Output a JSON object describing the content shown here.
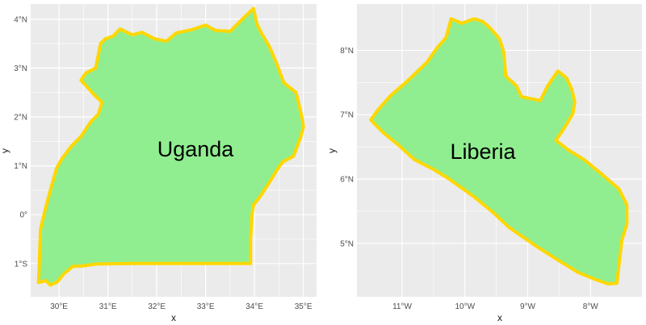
{
  "colors": {
    "panel_background": "#ebebeb",
    "grid": "#ffffff",
    "country_fill": "#90ee90",
    "country_border": "#ffd700"
  },
  "chart_data": [
    {
      "type": "map",
      "country": "Uganda",
      "label": "Uganda",
      "xlabel": "x",
      "ylabel": "y",
      "xlim": [
        29.42,
        35.27
      ],
      "ylim": [
        -1.68,
        4.31
      ],
      "x_ticks": [
        30,
        31,
        32,
        33,
        34,
        35
      ],
      "x_tick_labels": [
        "30°E",
        "31°E",
        "32°E",
        "33°E",
        "34°E",
        "35°E"
      ],
      "y_ticks": [
        -1,
        0,
        1,
        2,
        3,
        4
      ],
      "y_tick_labels": [
        "1°S",
        "0°",
        "1°N",
        "2°N",
        "3°N",
        "4°N"
      ],
      "grid": true,
      "boundary": [
        [
          29.58,
          -1.39
        ],
        [
          29.73,
          -1.35
        ],
        [
          29.82,
          -1.44
        ],
        [
          29.96,
          -1.38
        ],
        [
          30.1,
          -1.21
        ],
        [
          30.28,
          -1.06
        ],
        [
          30.48,
          -1.05
        ],
        [
          30.77,
          -1.01
        ],
        [
          31.5,
          -1.0
        ],
        [
          32.5,
          -1.0
        ],
        [
          33.3,
          -1.0
        ],
        [
          33.92,
          -1.0
        ],
        [
          33.92,
          -0.5
        ],
        [
          33.95,
          0.0
        ],
        [
          33.98,
          0.2
        ],
        [
          34.1,
          0.35
        ],
        [
          34.2,
          0.5
        ],
        [
          34.33,
          0.7
        ],
        [
          34.45,
          0.9
        ],
        [
          34.58,
          1.08
        ],
        [
          34.8,
          1.2
        ],
        [
          34.95,
          1.6
        ],
        [
          35.0,
          1.8
        ],
        [
          34.97,
          2.0
        ],
        [
          34.85,
          2.5
        ],
        [
          34.6,
          2.7
        ],
        [
          34.45,
          3.1
        ],
        [
          34.3,
          3.45
        ],
        [
          34.15,
          3.7
        ],
        [
          34.05,
          3.9
        ],
        [
          33.98,
          4.22
        ],
        [
          33.7,
          3.95
        ],
        [
          33.5,
          3.75
        ],
        [
          33.2,
          3.77
        ],
        [
          33.0,
          3.88
        ],
        [
          32.7,
          3.78
        ],
        [
          32.4,
          3.72
        ],
        [
          32.2,
          3.55
        ],
        [
          31.95,
          3.6
        ],
        [
          31.7,
          3.73
        ],
        [
          31.5,
          3.68
        ],
        [
          31.25,
          3.8
        ],
        [
          31.1,
          3.65
        ],
        [
          30.95,
          3.6
        ],
        [
          30.85,
          3.5
        ],
        [
          30.75,
          3.0
        ],
        [
          30.55,
          2.9
        ],
        [
          30.45,
          2.75
        ],
        [
          30.72,
          2.45
        ],
        [
          30.88,
          2.3
        ],
        [
          30.8,
          2.05
        ],
        [
          30.65,
          1.9
        ],
        [
          30.45,
          1.6
        ],
        [
          30.25,
          1.4
        ],
        [
          30.05,
          1.13
        ],
        [
          29.95,
          0.95
        ],
        [
          29.85,
          0.6
        ],
        [
          29.72,
          0.12
        ],
        [
          29.62,
          -0.3
        ],
        [
          29.6,
          -0.9
        ],
        [
          29.58,
          -1.39
        ]
      ]
    },
    {
      "type": "map",
      "country": "Liberia",
      "label": "Liberia",
      "xlabel": "x",
      "ylabel": "y",
      "xlim": [
        -11.72,
        -7.18
      ],
      "ylim": [
        4.17,
        8.72
      ],
      "x_ticks": [
        -11,
        -10,
        -9,
        -8
      ],
      "x_tick_labels": [
        "11°W",
        "10°W",
        "9°W",
        "8°W"
      ],
      "y_ticks": [
        5,
        6,
        7,
        8
      ],
      "y_tick_labels": [
        "5°N",
        "6°N",
        "7°N",
        "8°N"
      ],
      "grid": true,
      "boundary": [
        [
          -11.5,
          6.92
        ],
        [
          -11.38,
          7.08
        ],
        [
          -11.18,
          7.3
        ],
        [
          -10.92,
          7.52
        ],
        [
          -10.6,
          7.82
        ],
        [
          -10.45,
          8.03
        ],
        [
          -10.3,
          8.2
        ],
        [
          -10.22,
          8.49
        ],
        [
          -10.05,
          8.42
        ],
        [
          -9.85,
          8.49
        ],
        [
          -9.72,
          8.45
        ],
        [
          -9.6,
          8.35
        ],
        [
          -9.45,
          8.18
        ],
        [
          -9.38,
          7.97
        ],
        [
          -9.35,
          7.6
        ],
        [
          -9.18,
          7.45
        ],
        [
          -9.1,
          7.28
        ],
        [
          -8.95,
          7.25
        ],
        [
          -8.8,
          7.22
        ],
        [
          -8.68,
          7.45
        ],
        [
          -8.52,
          7.68
        ],
        [
          -8.38,
          7.57
        ],
        [
          -8.3,
          7.4
        ],
        [
          -8.25,
          7.2
        ],
        [
          -8.28,
          7.02
        ],
        [
          -8.4,
          6.82
        ],
        [
          -8.55,
          6.6
        ],
        [
          -8.35,
          6.45
        ],
        [
          -8.1,
          6.3
        ],
        [
          -7.85,
          6.1
        ],
        [
          -7.55,
          5.85
        ],
        [
          -7.42,
          5.6
        ],
        [
          -7.42,
          5.3
        ],
        [
          -7.5,
          5.05
        ],
        [
          -7.53,
          4.8
        ],
        [
          -7.58,
          4.38
        ],
        [
          -7.72,
          4.37
        ],
        [
          -7.95,
          4.45
        ],
        [
          -8.2,
          4.55
        ],
        [
          -8.55,
          4.76
        ],
        [
          -8.9,
          4.98
        ],
        [
          -9.3,
          5.25
        ],
        [
          -9.55,
          5.48
        ],
        [
          -9.85,
          5.72
        ],
        [
          -10.25,
          6.0
        ],
        [
          -10.5,
          6.15
        ],
        [
          -10.8,
          6.3
        ],
        [
          -11.05,
          6.52
        ],
        [
          -11.3,
          6.72
        ],
        [
          -11.5,
          6.92
        ]
      ]
    }
  ]
}
